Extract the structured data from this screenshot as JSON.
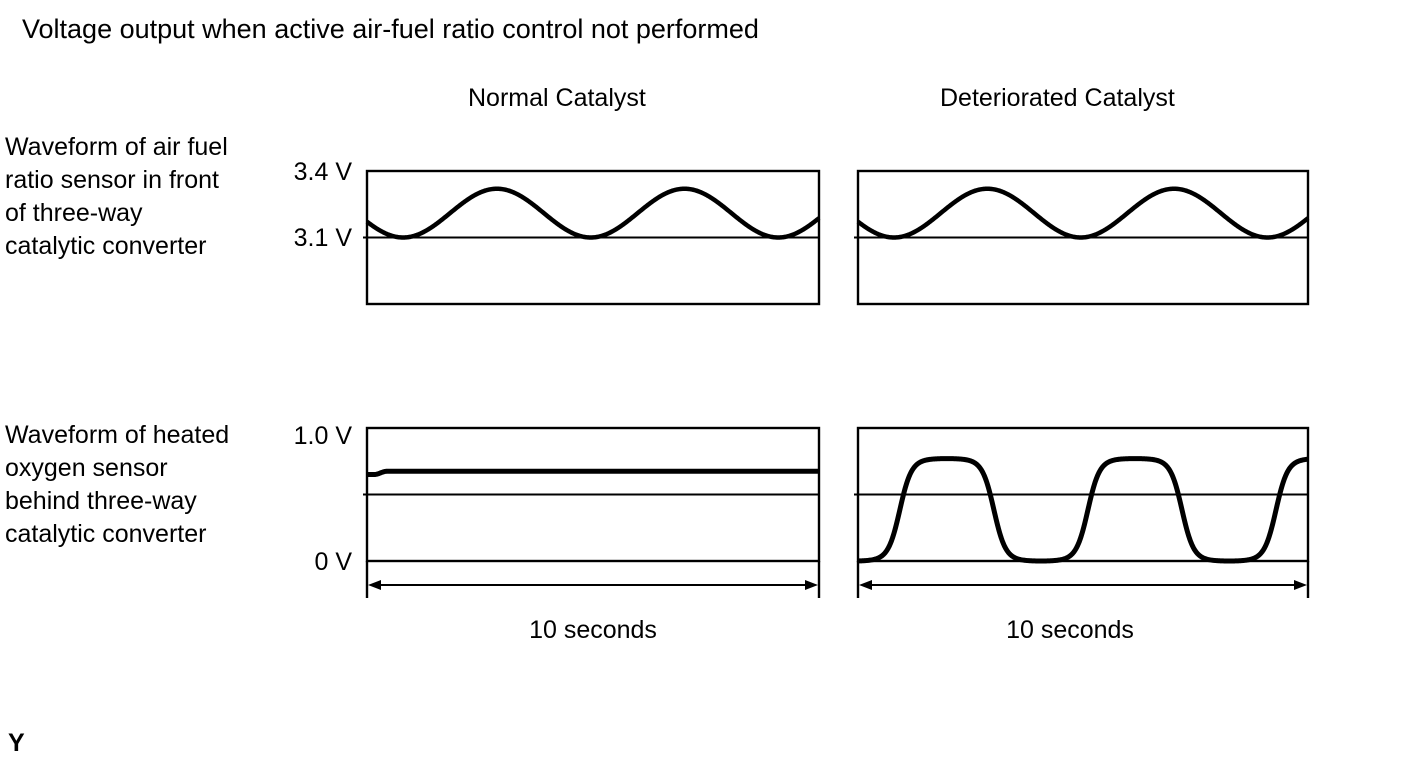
{
  "page": {
    "title": "Voltage output when active air-fuel ratio control not performed",
    "footnote": "Y",
    "background": "#ffffff",
    "ink": "#000000"
  },
  "columns": [
    {
      "label": "Normal Catalyst"
    },
    {
      "label": "Deteriorated Catalyst"
    }
  ],
  "rows": [
    {
      "label_lines": [
        "Waveform of air fuel",
        "ratio sensor in front",
        "of three-way",
        "catalytic converter"
      ]
    },
    {
      "label_lines": [
        "Waveform of heated",
        "oxygen sensor",
        "behind three-way",
        "catalytic converter"
      ]
    }
  ],
  "y_labels": [
    {
      "text": "3.4 V"
    },
    {
      "text": "3.1 V"
    },
    {
      "text": "1.0 V"
    },
    {
      "text": "0 V"
    }
  ],
  "time_axis": {
    "label": "10 seconds",
    "duration_s": 10
  },
  "chart_data": [
    {
      "id": "af_normal",
      "type": "line",
      "column": "Normal Catalyst",
      "sensor": "Air fuel ratio sensor in front of three-way catalytic converter",
      "x_range_s": [
        0,
        10
      ],
      "y_axis": {
        "top_v": 3.4,
        "bottom_v": 2.8,
        "mid_v": 3.1,
        "labeled_v": [
          3.4,
          3.1
        ]
      },
      "wave": {
        "kind": "raised_sin2",
        "v_base": 3.1,
        "v_peak": 3.32,
        "period_s": 4.15,
        "first_min_s": 0.8
      },
      "key_times_s": {
        "minima": [
          0.8,
          4.95,
          9.1
        ],
        "maxima": [
          2.88,
          7.03
        ]
      }
    },
    {
      "id": "af_deteriorated",
      "type": "line",
      "column": "Deteriorated Catalyst",
      "sensor": "Air fuel ratio sensor in front of three-way catalytic converter",
      "x_range_s": [
        0,
        10
      ],
      "y_axis": {
        "top_v": 3.4,
        "bottom_v": 2.8,
        "mid_v": 3.1,
        "labeled_v": [
          3.4,
          3.1
        ]
      },
      "wave": {
        "kind": "raised_sin2",
        "v_base": 3.1,
        "v_peak": 3.32,
        "period_s": 4.15,
        "first_min_s": 0.8
      },
      "key_times_s": {
        "minima": [
          0.8,
          4.95,
          9.1
        ],
        "maxima": [
          2.88,
          7.03
        ]
      }
    },
    {
      "id": "o2_normal",
      "type": "line",
      "column": "Normal Catalyst",
      "sensor": "Heated oxygen sensor behind three-way catalytic converter",
      "x_range_s": [
        0,
        10
      ],
      "y_axis": {
        "top_v": 1.0,
        "bottom_v": 0.0,
        "mid_v": 0.5,
        "labeled_v": [
          1.0,
          0.0
        ]
      },
      "wave": {
        "kind": "flat_step",
        "v_start": 0.65,
        "v_flat": 0.675,
        "step_start_s": 0.15,
        "step_end_s": 0.45
      },
      "time_arrow_label": "10 seconds"
    },
    {
      "id": "o2_deteriorated",
      "type": "line",
      "column": "Deteriorated Catalyst",
      "sensor": "Heated oxygen sensor behind three-way catalytic converter",
      "x_range_s": [
        0,
        10
      ],
      "y_axis": {
        "top_v": 1.0,
        "bottom_v": 0.0,
        "mid_v": 0.5,
        "labeled_v": [
          1.0,
          0.0
        ]
      },
      "wave": {
        "kind": "clipped_square",
        "v_low": 0.0,
        "v_high": 0.77,
        "period_s": 4.18,
        "first_rise_s": 0.93,
        "squareness": 2.5
      },
      "key_times_s": {
        "rising_cross_0_5v": [
          0.93,
          5.0,
          9.2
        ],
        "falling_cross_0_5v": [
          2.9,
          7.1
        ]
      },
      "time_arrow_label": "10 seconds"
    }
  ]
}
